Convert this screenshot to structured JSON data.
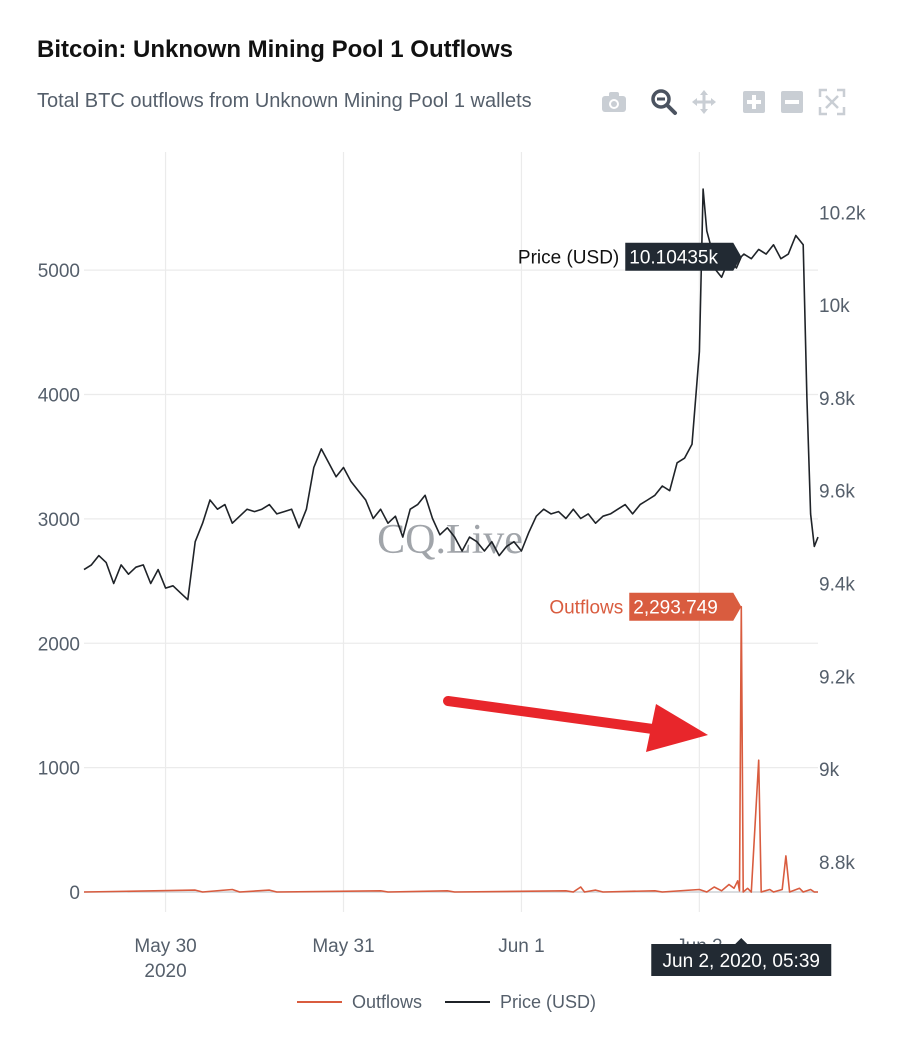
{
  "chart_data": {
    "type": "line",
    "title": "Bitcoin: Unknown Mining Pool 1 Outflows",
    "subtitle": "Total BTC outflows from Unknown Mining Pool 1 wallets",
    "x_ticks": [
      {
        "date": "2020-05-30T00:00",
        "label": "May 30",
        "sublabel": "2020"
      },
      {
        "date": "2020-05-31T00:00",
        "label": "May 31",
        "sublabel": ""
      },
      {
        "date": "2020-06-01T00:00",
        "label": "Jun 1",
        "sublabel": ""
      },
      {
        "date": "2020-06-02T00:00",
        "label": "Jun 2",
        "sublabel": ""
      }
    ],
    "xlim": [
      "2020-05-29T13:00",
      "2020-06-02T16:00"
    ],
    "y_left": {
      "ticks": [
        0,
        1000,
        2000,
        3000,
        4000,
        5000
      ],
      "tick_labels": [
        "0",
        "1000",
        "2000",
        "3000",
        "4000",
        "5000"
      ],
      "ylim": [
        0,
        5950
      ]
    },
    "y_right": {
      "ticks": [
        8800,
        9000,
        9200,
        9400,
        9600,
        9800,
        10000,
        10200
      ],
      "tick_labels": [
        "8.8k",
        "9k",
        "9.2k",
        "9.4k",
        "9.6k",
        "9.8k",
        "10k",
        "10.2k"
      ],
      "ylim": [
        8735,
        10330
      ]
    },
    "grid": true,
    "legend": {
      "position": "bottom",
      "entries": [
        "Outflows",
        "Price (USD)"
      ]
    },
    "series": [
      {
        "name": "Outflows",
        "axis": "left",
        "color": "#d95c3f",
        "points": [
          [
            "2020-05-29T13:00",
            0
          ],
          [
            "2020-05-30T04:00",
            15
          ],
          [
            "2020-05-30T05:00",
            0
          ],
          [
            "2020-05-30T09:00",
            20
          ],
          [
            "2020-05-30T10:00",
            0
          ],
          [
            "2020-05-30T14:00",
            15
          ],
          [
            "2020-05-30T15:00",
            0
          ],
          [
            "2020-05-31T05:00",
            10
          ],
          [
            "2020-05-31T06:00",
            0
          ],
          [
            "2020-05-31T14:00",
            10
          ],
          [
            "2020-05-31T15:00",
            0
          ],
          [
            "2020-06-01T06:00",
            10
          ],
          [
            "2020-06-01T07:00",
            0
          ],
          [
            "2020-06-01T08:00",
            40
          ],
          [
            "2020-06-01T08:30",
            0
          ],
          [
            "2020-06-01T10:00",
            15
          ],
          [
            "2020-06-01T11:00",
            0
          ],
          [
            "2020-06-01T18:00",
            10
          ],
          [
            "2020-06-01T19:00",
            0
          ],
          [
            "2020-06-02T00:00",
            20
          ],
          [
            "2020-06-02T01:00",
            0
          ],
          [
            "2020-06-02T02:00",
            40
          ],
          [
            "2020-06-02T03:00",
            10
          ],
          [
            "2020-06-02T04:00",
            60
          ],
          [
            "2020-06-02T04:40",
            30
          ],
          [
            "2020-06-02T05:10",
            90
          ],
          [
            "2020-06-02T05:25",
            10
          ],
          [
            "2020-06-02T05:39",
            2293.749
          ],
          [
            "2020-06-02T05:55",
            0
          ],
          [
            "2020-06-02T06:30",
            30
          ],
          [
            "2020-06-02T07:00",
            0
          ],
          [
            "2020-06-02T08:00",
            1060
          ],
          [
            "2020-06-02T08:20",
            0
          ],
          [
            "2020-06-02T09:30",
            20
          ],
          [
            "2020-06-02T10:00",
            0
          ],
          [
            "2020-06-02T11:10",
            20
          ],
          [
            "2020-06-02T11:40",
            290
          ],
          [
            "2020-06-02T12:10",
            0
          ],
          [
            "2020-06-02T13:30",
            30
          ],
          [
            "2020-06-02T14:00",
            0
          ],
          [
            "2020-06-02T15:00",
            20
          ],
          [
            "2020-06-02T15:30",
            0
          ],
          [
            "2020-06-02T16:00",
            0
          ]
        ]
      },
      {
        "name": "Price (USD)",
        "axis": "right",
        "color": "#1f2328",
        "points": [
          [
            "2020-05-29T13:00",
            9430
          ],
          [
            "2020-05-29T14:00",
            9440
          ],
          [
            "2020-05-29T15:00",
            9460
          ],
          [
            "2020-05-29T16:00",
            9445
          ],
          [
            "2020-05-29T17:00",
            9400
          ],
          [
            "2020-05-29T18:00",
            9440
          ],
          [
            "2020-05-29T19:00",
            9420
          ],
          [
            "2020-05-29T20:00",
            9435
          ],
          [
            "2020-05-29T21:00",
            9440
          ],
          [
            "2020-05-29T22:00",
            9400
          ],
          [
            "2020-05-29T23:00",
            9430
          ],
          [
            "2020-05-30T00:00",
            9390
          ],
          [
            "2020-05-30T01:00",
            9395
          ],
          [
            "2020-05-30T02:00",
            9380
          ],
          [
            "2020-05-30T03:00",
            9365
          ],
          [
            "2020-05-30T04:00",
            9490
          ],
          [
            "2020-05-30T05:00",
            9530
          ],
          [
            "2020-05-30T06:00",
            9580
          ],
          [
            "2020-05-30T07:00",
            9560
          ],
          [
            "2020-05-30T08:00",
            9570
          ],
          [
            "2020-05-30T09:00",
            9530
          ],
          [
            "2020-05-30T10:00",
            9545
          ],
          [
            "2020-05-30T11:00",
            9560
          ],
          [
            "2020-05-30T12:00",
            9555
          ],
          [
            "2020-05-30T13:00",
            9560
          ],
          [
            "2020-05-30T14:00",
            9570
          ],
          [
            "2020-05-30T15:00",
            9550
          ],
          [
            "2020-05-30T16:00",
            9555
          ],
          [
            "2020-05-30T17:00",
            9560
          ],
          [
            "2020-05-30T18:00",
            9520
          ],
          [
            "2020-05-30T19:00",
            9560
          ],
          [
            "2020-05-30T20:00",
            9650
          ],
          [
            "2020-05-30T21:00",
            9690
          ],
          [
            "2020-05-30T22:00",
            9660
          ],
          [
            "2020-05-30T23:00",
            9630
          ],
          [
            "2020-05-31T00:00",
            9650
          ],
          [
            "2020-05-31T01:00",
            9620
          ],
          [
            "2020-05-31T02:00",
            9600
          ],
          [
            "2020-05-31T03:00",
            9580
          ],
          [
            "2020-05-31T04:00",
            9540
          ],
          [
            "2020-05-31T05:00",
            9560
          ],
          [
            "2020-05-31T06:00",
            9530
          ],
          [
            "2020-05-31T07:00",
            9545
          ],
          [
            "2020-05-31T08:00",
            9500
          ],
          [
            "2020-05-31T09:00",
            9560
          ],
          [
            "2020-05-31T10:00",
            9570
          ],
          [
            "2020-05-31T11:00",
            9590
          ],
          [
            "2020-05-31T12:00",
            9540
          ],
          [
            "2020-05-31T13:00",
            9505
          ],
          [
            "2020-05-31T14:00",
            9520
          ],
          [
            "2020-05-31T15:00",
            9500
          ],
          [
            "2020-05-31T16:00",
            9470
          ],
          [
            "2020-05-31T17:00",
            9500
          ],
          [
            "2020-05-31T18:00",
            9490
          ],
          [
            "2020-05-31T19:00",
            9470
          ],
          [
            "2020-05-31T20:00",
            9490
          ],
          [
            "2020-05-31T21:00",
            9460
          ],
          [
            "2020-05-31T22:00",
            9480
          ],
          [
            "2020-05-31T23:00",
            9490
          ],
          [
            "2020-06-01T00:00",
            9470
          ],
          [
            "2020-06-01T01:00",
            9510
          ],
          [
            "2020-06-01T02:00",
            9545
          ],
          [
            "2020-06-01T03:00",
            9560
          ],
          [
            "2020-06-01T04:00",
            9550
          ],
          [
            "2020-06-01T05:00",
            9555
          ],
          [
            "2020-06-01T06:00",
            9540
          ],
          [
            "2020-06-01T07:00",
            9560
          ],
          [
            "2020-06-01T08:00",
            9540
          ],
          [
            "2020-06-01T09:00",
            9550
          ],
          [
            "2020-06-01T10:00",
            9530
          ],
          [
            "2020-06-01T11:00",
            9545
          ],
          [
            "2020-06-01T12:00",
            9550
          ],
          [
            "2020-06-01T13:00",
            9560
          ],
          [
            "2020-06-01T14:00",
            9570
          ],
          [
            "2020-06-01T15:00",
            9550
          ],
          [
            "2020-06-01T16:00",
            9570
          ],
          [
            "2020-06-01T17:00",
            9580
          ],
          [
            "2020-06-01T18:00",
            9590
          ],
          [
            "2020-06-01T19:00",
            9610
          ],
          [
            "2020-06-01T20:00",
            9600
          ],
          [
            "2020-06-01T21:00",
            9660
          ],
          [
            "2020-06-01T22:00",
            9670
          ],
          [
            "2020-06-01T23:00",
            9700
          ],
          [
            "2020-06-02T00:00",
            9900
          ],
          [
            "2020-06-02T00:30",
            10250
          ],
          [
            "2020-06-02T01:00",
            10160
          ],
          [
            "2020-06-02T01:30",
            10130
          ],
          [
            "2020-06-02T02:00",
            10080
          ],
          [
            "2020-06-02T03:00",
            10060
          ],
          [
            "2020-06-02T04:00",
            10100
          ],
          [
            "2020-06-02T05:00",
            10080
          ],
          [
            "2020-06-02T05:39",
            10104.35
          ],
          [
            "2020-06-02T06:00",
            10110
          ],
          [
            "2020-06-02T07:00",
            10100
          ],
          [
            "2020-06-02T08:00",
            10120
          ],
          [
            "2020-06-02T09:00",
            10110
          ],
          [
            "2020-06-02T10:00",
            10130
          ],
          [
            "2020-06-02T11:00",
            10100
          ],
          [
            "2020-06-02T12:00",
            10110
          ],
          [
            "2020-06-02T13:00",
            10150
          ],
          [
            "2020-06-02T14:00",
            10130
          ],
          [
            "2020-06-02T14:30",
            9800
          ],
          [
            "2020-06-02T15:00",
            9550
          ],
          [
            "2020-06-02T15:30",
            9480
          ],
          [
            "2020-06-02T16:00",
            9500
          ]
        ]
      }
    ],
    "hover": {
      "x_label": "Jun 2, 2020, 05:39",
      "price": {
        "name": "Price (USD)",
        "value_label": "10.10435k",
        "x": "2020-06-02T05:39",
        "y": 10104.35
      },
      "outflows": {
        "name": "Outflows",
        "value_label": "2,293.749",
        "x": "2020-06-02T05:39",
        "y": 2293.749
      }
    },
    "watermark": "CQ.Live",
    "annotation": {
      "type": "arrow",
      "color": "#e8262b",
      "points_to": "Outflows spike Jun 2, 2020, 05:39"
    }
  },
  "modebar": {
    "icons": [
      "camera-icon",
      "zoom-icon",
      "pan-icon",
      "zoom-in-icon",
      "zoom-out-icon",
      "autoscale-icon"
    ]
  },
  "colors": {
    "outflows": "#d95c3f",
    "price": "#1f2328",
    "tooltip_dark": "#222a33",
    "arrow": "#e8262b",
    "grid": "#ebebeb"
  }
}
